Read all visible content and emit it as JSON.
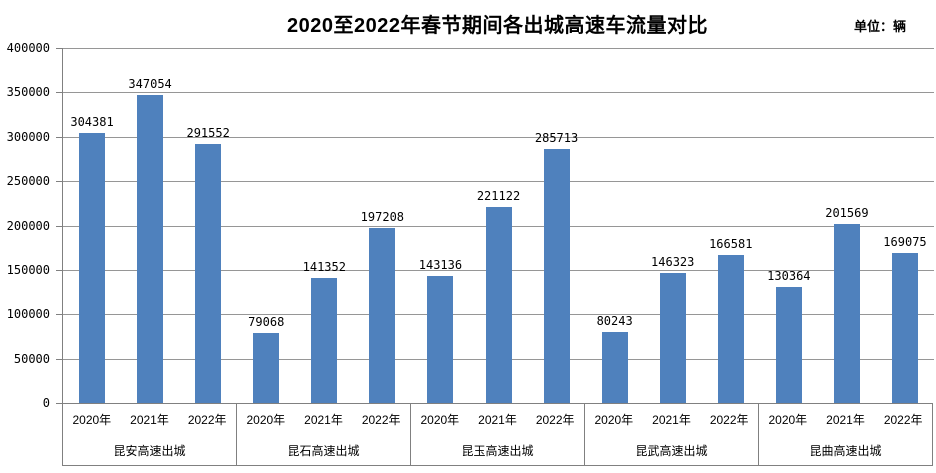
{
  "header": {
    "title": "2020至2022年春节期间各出城高速车流量对比",
    "unit_label": "单位：辆"
  },
  "chart_data": {
    "type": "bar",
    "title": "2020至2022年春节期间各出城高速车流量对比",
    "unit_label": "单位：辆",
    "xlabel": "",
    "ylabel": "",
    "ylim": [
      0,
      400000
    ],
    "ytick_step": 50000,
    "yticks": [
      0,
      50000,
      100000,
      150000,
      200000,
      250000,
      300000,
      350000,
      400000
    ],
    "grid": true,
    "legend": "none",
    "bar_color": "#4F81BD",
    "gridline_color": "#969696",
    "axis_color": "#808080",
    "categories": [
      "2020年",
      "2021年",
      "2022年"
    ],
    "groups": [
      {
        "label": "昆安高速出城",
        "values": [
          304381,
          347054,
          291552
        ]
      },
      {
        "label": "昆石高速出城",
        "values": [
          79068,
          141352,
          197208
        ]
      },
      {
        "label": "昆玉高速出城",
        "values": [
          143136,
          221122,
          285713
        ]
      },
      {
        "label": "昆武高速出城",
        "values": [
          80243,
          146323,
          166581
        ]
      },
      {
        "label": "昆曲高速出城",
        "values": [
          130364,
          201569,
          169075
        ]
      }
    ]
  }
}
